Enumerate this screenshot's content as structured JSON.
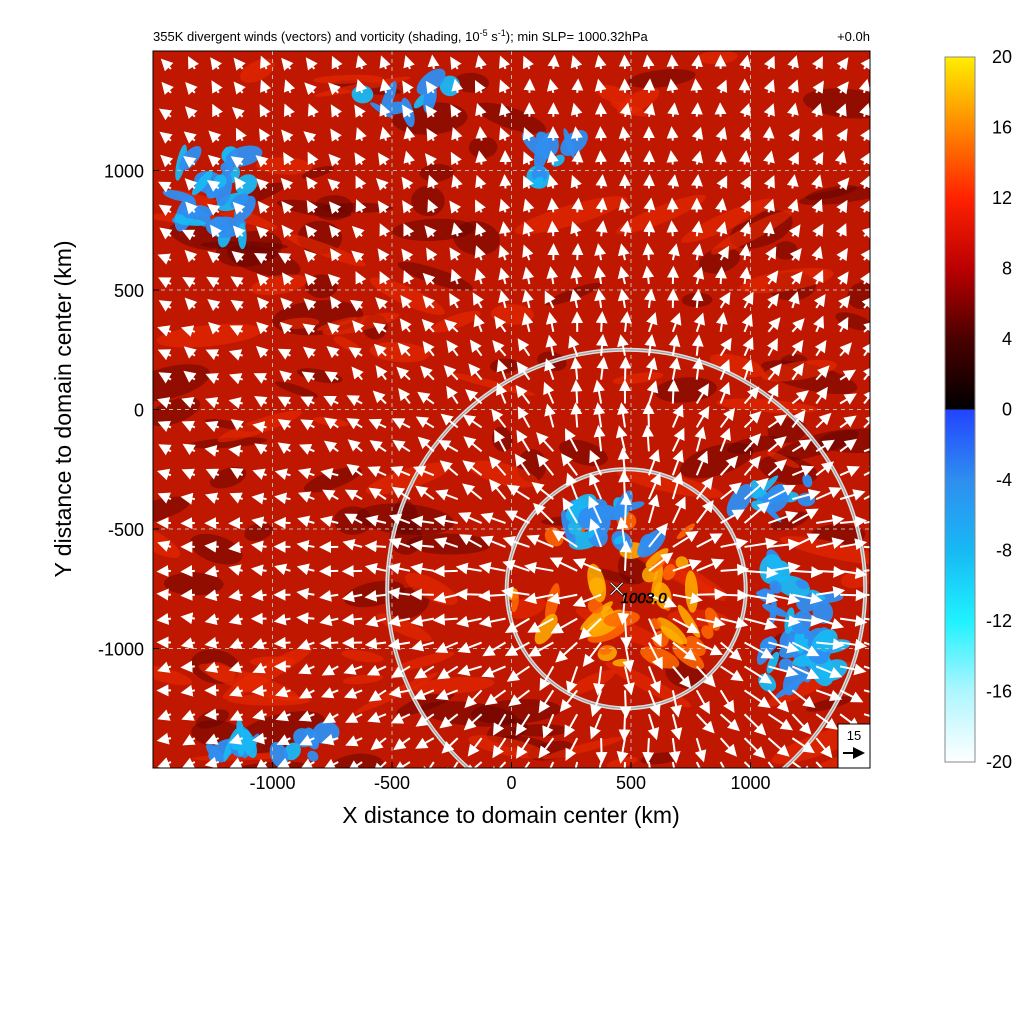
{
  "chart_data": {
    "type": "heatmap",
    "title": "355K divergent winds (vectors) and vorticity (shading, 10",
    "title_exp1": "-5",
    "title_mid": " s",
    "title_exp2": "-1",
    "title_tail": "); min SLP= 1000.32hPa",
    "time_label": "+0.0h",
    "xlabel": "X distance to domain center (km)",
    "ylabel": "Y distance to domain center (km)",
    "xlim": [
      -1500,
      1500
    ],
    "ylim": [
      -1500,
      1500
    ],
    "x_ticks": [
      -1000,
      -500,
      0,
      500,
      1000
    ],
    "y_ticks": [
      1000,
      500,
      0,
      -500,
      -1000
    ],
    "x_tick_labels": [
      "-1000",
      "-500",
      "0",
      "500",
      "1000"
    ],
    "y_tick_labels": [
      "1000",
      "500",
      "0",
      "-500",
      "-1000"
    ],
    "grid": true,
    "colorbar": {
      "range": [
        -20,
        20
      ],
      "ticks": [
        20,
        16,
        12,
        8,
        4,
        0,
        -4,
        -8,
        -12,
        -16,
        -20
      ],
      "tick_labels": [
        "20",
        "16",
        "12",
        "8",
        "4",
        "0",
        "-4",
        "-8",
        "-12",
        "-16",
        "-20"
      ],
      "stops": [
        {
          "value": -20,
          "color": "#ffffff"
        },
        {
          "value": -16,
          "color": "#aef6ff"
        },
        {
          "value": -12,
          "color": "#1ff2ff"
        },
        {
          "value": -8,
          "color": "#18b8f4"
        },
        {
          "value": -4,
          "color": "#2f8ef0"
        },
        {
          "value": 0,
          "color": "#2244ff"
        },
        {
          "value": 0,
          "color": "#000000"
        },
        {
          "value": 4,
          "color": "#4a0000"
        },
        {
          "value": 8,
          "color": "#bb0000"
        },
        {
          "value": 12,
          "color": "#ff2200"
        },
        {
          "value": 16,
          "color": "#ff8800"
        },
        {
          "value": 20,
          "color": "#ffee00"
        }
      ]
    },
    "storm_center": {
      "x": 440,
      "y": -750,
      "label": "1003.0"
    },
    "range_rings": [
      {
        "x": 480,
        "y": -750,
        "radius": 500
      },
      {
        "x": 480,
        "y": -750,
        "radius": 1000
      }
    ],
    "reference_vector": {
      "label": "15"
    }
  }
}
